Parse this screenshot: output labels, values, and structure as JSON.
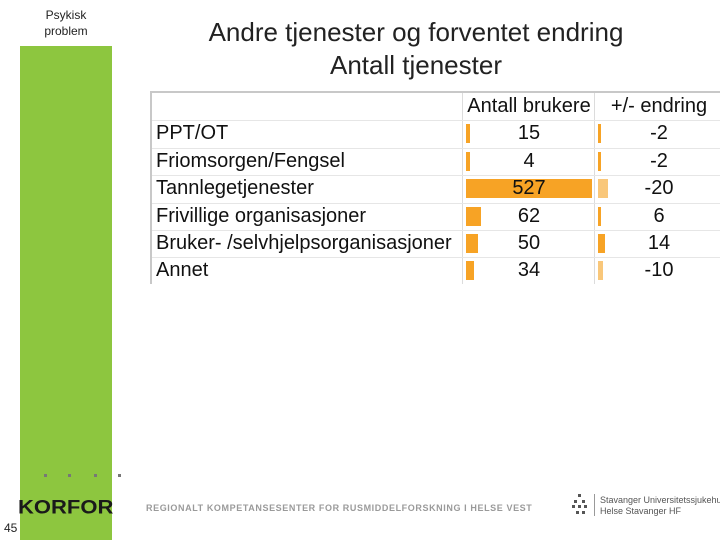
{
  "sidebar": {
    "label_line1": "Psykisk",
    "label_line2": "problem"
  },
  "title": {
    "line1": "Andre tjenester og forventet endring",
    "line2": "Antall tjenester"
  },
  "table": {
    "headers": {
      "users": "Antall brukere",
      "change": "+/- endring"
    },
    "max_users": 527,
    "max_change": 20,
    "rows": [
      {
        "name": "PPT/OT",
        "users": "15",
        "users_value": 15,
        "change": "-2",
        "change_value": -2
      },
      {
        "name": "Friomsorgen/Fengsel",
        "users": "4",
        "users_value": 4,
        "change": "-2",
        "change_value": -2
      },
      {
        "name": "Tannlegetjenester",
        "users": "527",
        "users_value": 527,
        "change": "-20",
        "change_value": -20
      },
      {
        "name": "Frivillige organisasjoner",
        "users": "62",
        "users_value": 62,
        "change": "6",
        "change_value": 6
      },
      {
        "name": "Bruker- /selvhjelpsorganisasjoner",
        "users": "50",
        "users_value": 50,
        "change": "14",
        "change_value": 14
      },
      {
        "name": "Annet",
        "users": "34",
        "users_value": 34,
        "change": "-10",
        "change_value": -10
      }
    ]
  },
  "footer": {
    "logo": "KORFOR",
    "tagline": "REGIONALT KOMPETANSESENTER FOR RUSMIDDELFORSKNING I HELSE VEST",
    "hospital_line1": "Stavanger Universitetssjukehus",
    "hospital_line2": "Helse Stavanger HF",
    "page_number": "45"
  },
  "colors": {
    "sidebar": "#8dc63f",
    "bar": "#f7a325",
    "bar_light": "#f9c77a"
  }
}
